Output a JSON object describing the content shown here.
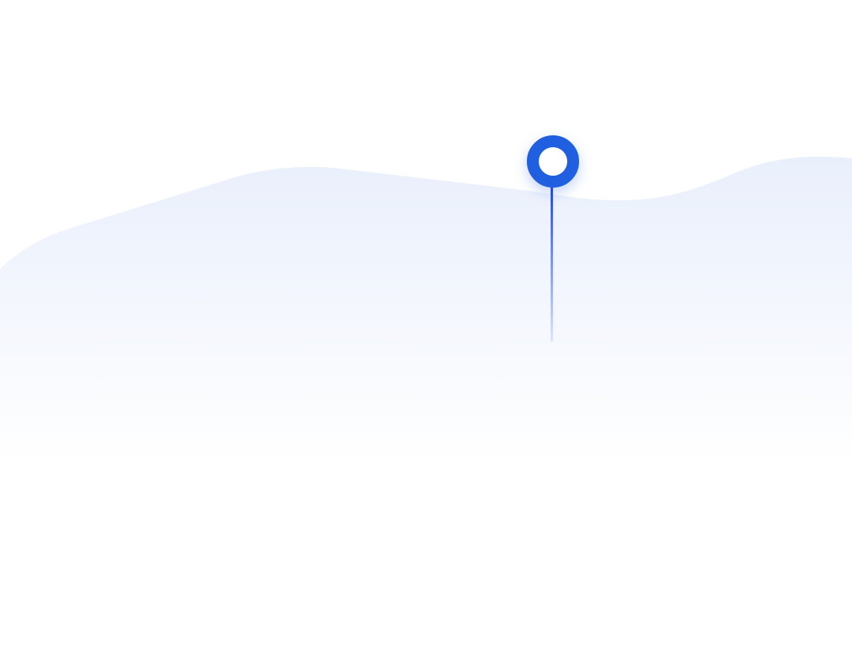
{
  "colors": {
    "page_background": "#f2f3f6",
    "card_background": "#ffffff",
    "wave_top": "#e9effc",
    "wave_bottom": "#ffffff",
    "accent": "#1f5fe0",
    "line_top": "#2348d8",
    "line_bottom": "#dfe6fb"
  },
  "elements": {
    "wave": {
      "icon": "wave-shape"
    },
    "pin": {
      "icon": "location-pin-icon"
    }
  }
}
